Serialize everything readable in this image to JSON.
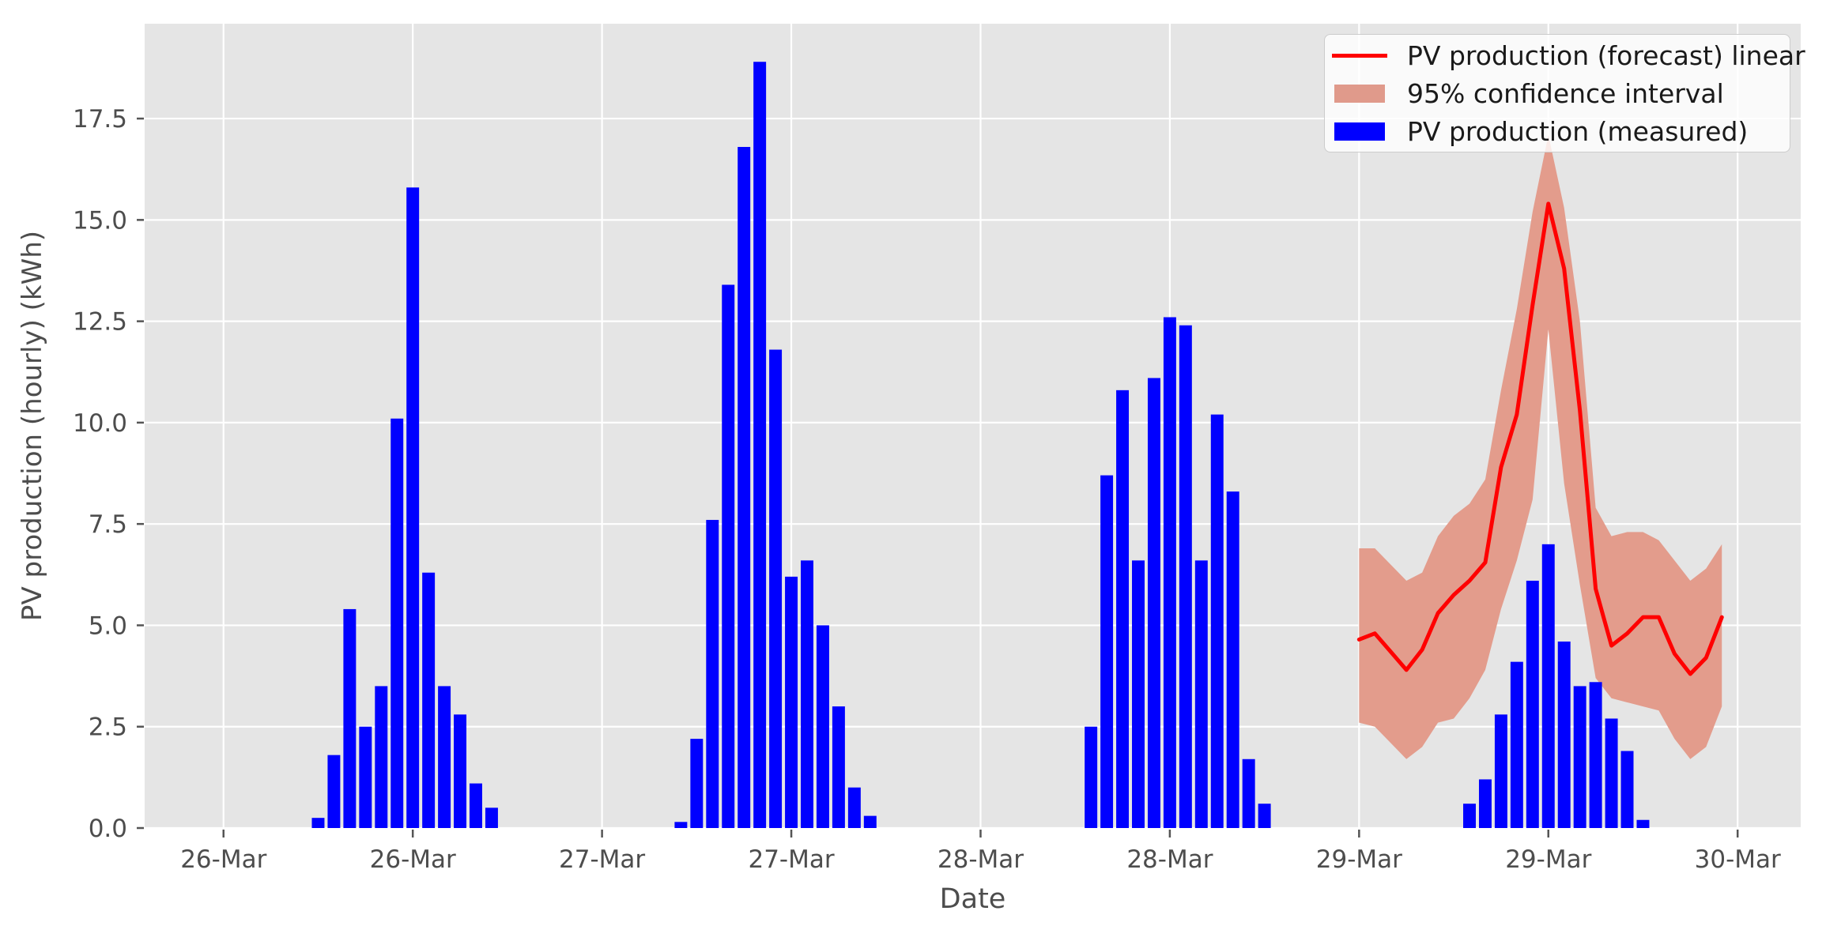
{
  "chart_data": {
    "type": "bar",
    "subtype": "bar + line + confidence band (time series, hourly PV production)",
    "title": "",
    "xlabel": "Date",
    "ylabel": "PV production (hourly) (kWh)",
    "ylim": [
      0,
      19.84
    ],
    "yticks": [
      0,
      2.5,
      5,
      7.5,
      10,
      12.5,
      15,
      17.5
    ],
    "ytick_labels": [
      "0.0",
      "2.5",
      "5.0",
      "7.5",
      "10.0",
      "12.5",
      "15.0",
      "17.5"
    ],
    "x_axis_hours_range": [
      -5,
      100
    ],
    "xticks_hours": [
      0,
      12,
      24,
      36,
      48,
      60,
      72,
      84,
      96
    ],
    "xtick_labels": [
      "26-Mar",
      "26-Mar",
      "27-Mar",
      "27-Mar",
      "28-Mar",
      "28-Mar",
      "29-Mar",
      "29-Mar",
      "30-Mar"
    ],
    "grid": true,
    "legend_position": "upper right",
    "colors": {
      "plot_background": "#e5e5e5",
      "grid": "#ffffff",
      "tick_text": "#4d4d4d",
      "legend_text": "#1a1a1a",
      "measured_bar": "#0000ff",
      "forecast_line": "#ff0000",
      "confidence_band": "#e39c8c"
    },
    "series": {
      "measured": {
        "label": "PV production (measured)",
        "type": "bar",
        "color": "#0000ff",
        "bar_width_hours": 0.8,
        "clusters": [
          {
            "date": "26-Mar",
            "start_hour": 6,
            "values": [
              0.25,
              1.8,
              5.4,
              2.5,
              3.5,
              10.1,
              15.8,
              6.3,
              3.5,
              2.8,
              1.1,
              0.5
            ]
          },
          {
            "date": "27-Mar",
            "start_hour": 5,
            "values": [
              0.15,
              2.2,
              7.6,
              13.4,
              16.8,
              18.9,
              11.8,
              6.2,
              6.6,
              5.0,
              3.0,
              1.0,
              0.3
            ]
          },
          {
            "date": "28-Mar",
            "start_hour": 7,
            "values": [
              2.5,
              8.7,
              10.8,
              6.6,
              11.1,
              12.6,
              12.4,
              6.6,
              10.2,
              8.3,
              1.7,
              0.6
            ]
          },
          {
            "date": "29-Mar",
            "start_hour": 7,
            "values": [
              0.6,
              1.2,
              2.8,
              4.1,
              6.1,
              7.0,
              4.6,
              3.5,
              3.6,
              2.7,
              1.9,
              0.2
            ]
          }
        ]
      },
      "forecast": {
        "label": "PV production (forecast) linear",
        "type": "line",
        "color": "#ff0000",
        "line_width": 5,
        "start_date": "29-Mar",
        "start_hour_abs": 72,
        "values": [
          4.65,
          4.8,
          4.35,
          3.9,
          4.4,
          5.3,
          5.75,
          6.1,
          6.55,
          8.9,
          10.2,
          12.9,
          15.4,
          13.8,
          10.3,
          5.9,
          4.5,
          4.8,
          5.2,
          5.2,
          4.3,
          3.8,
          4.2,
          5.2
        ]
      },
      "confidence": {
        "label": "95% confidence interval",
        "type": "band",
        "color": "#e39c8c",
        "start_hour_abs": 72,
        "upper": [
          6.9,
          6.9,
          6.5,
          6.1,
          6.3,
          7.2,
          7.7,
          8.0,
          8.6,
          10.8,
          12.8,
          15.2,
          17.1,
          15.3,
          12.5,
          7.9,
          7.2,
          7.3,
          7.3,
          7.1,
          6.6,
          6.1,
          6.4,
          7.0
        ],
        "lower": [
          2.6,
          2.5,
          2.1,
          1.7,
          2.0,
          2.6,
          2.7,
          3.2,
          3.9,
          5.4,
          6.6,
          8.1,
          12.3,
          8.5,
          6.0,
          3.7,
          3.2,
          3.1,
          3.0,
          2.9,
          2.2,
          1.7,
          2.0,
          3.0
        ]
      }
    }
  }
}
